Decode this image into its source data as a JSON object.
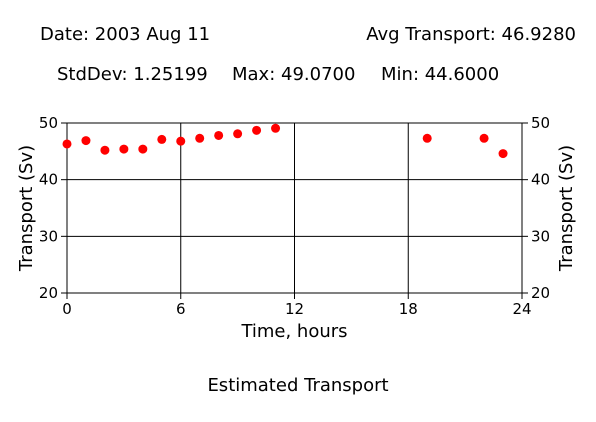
{
  "header": {
    "date": "Date: 2003 Aug 11",
    "avg": "Avg Transport: 46.9280",
    "stddev": "StdDev: 1.25199",
    "max": "Max: 49.0700",
    "min": "Min: 44.6000"
  },
  "caption": "Estimated Transport",
  "chart_data": {
    "type": "scatter",
    "xlabel": "Time, hours",
    "ylabel": "Transport (Sv)",
    "xlim": [
      0,
      24
    ],
    "ylim": [
      20,
      50
    ],
    "x_ticks": [
      0,
      6,
      12,
      18,
      24
    ],
    "y_ticks": [
      20,
      30,
      40,
      50
    ],
    "grid": true,
    "marker_color": "#ff0000",
    "x": [
      0,
      1,
      2,
      3,
      4,
      5,
      6,
      7,
      8,
      9,
      10,
      11,
      19,
      22,
      23
    ],
    "y": [
      46.3,
      46.9,
      45.2,
      45.4,
      45.4,
      47.1,
      46.8,
      47.3,
      47.8,
      48.1,
      48.7,
      49.07,
      47.3,
      47.3,
      44.6
    ]
  }
}
